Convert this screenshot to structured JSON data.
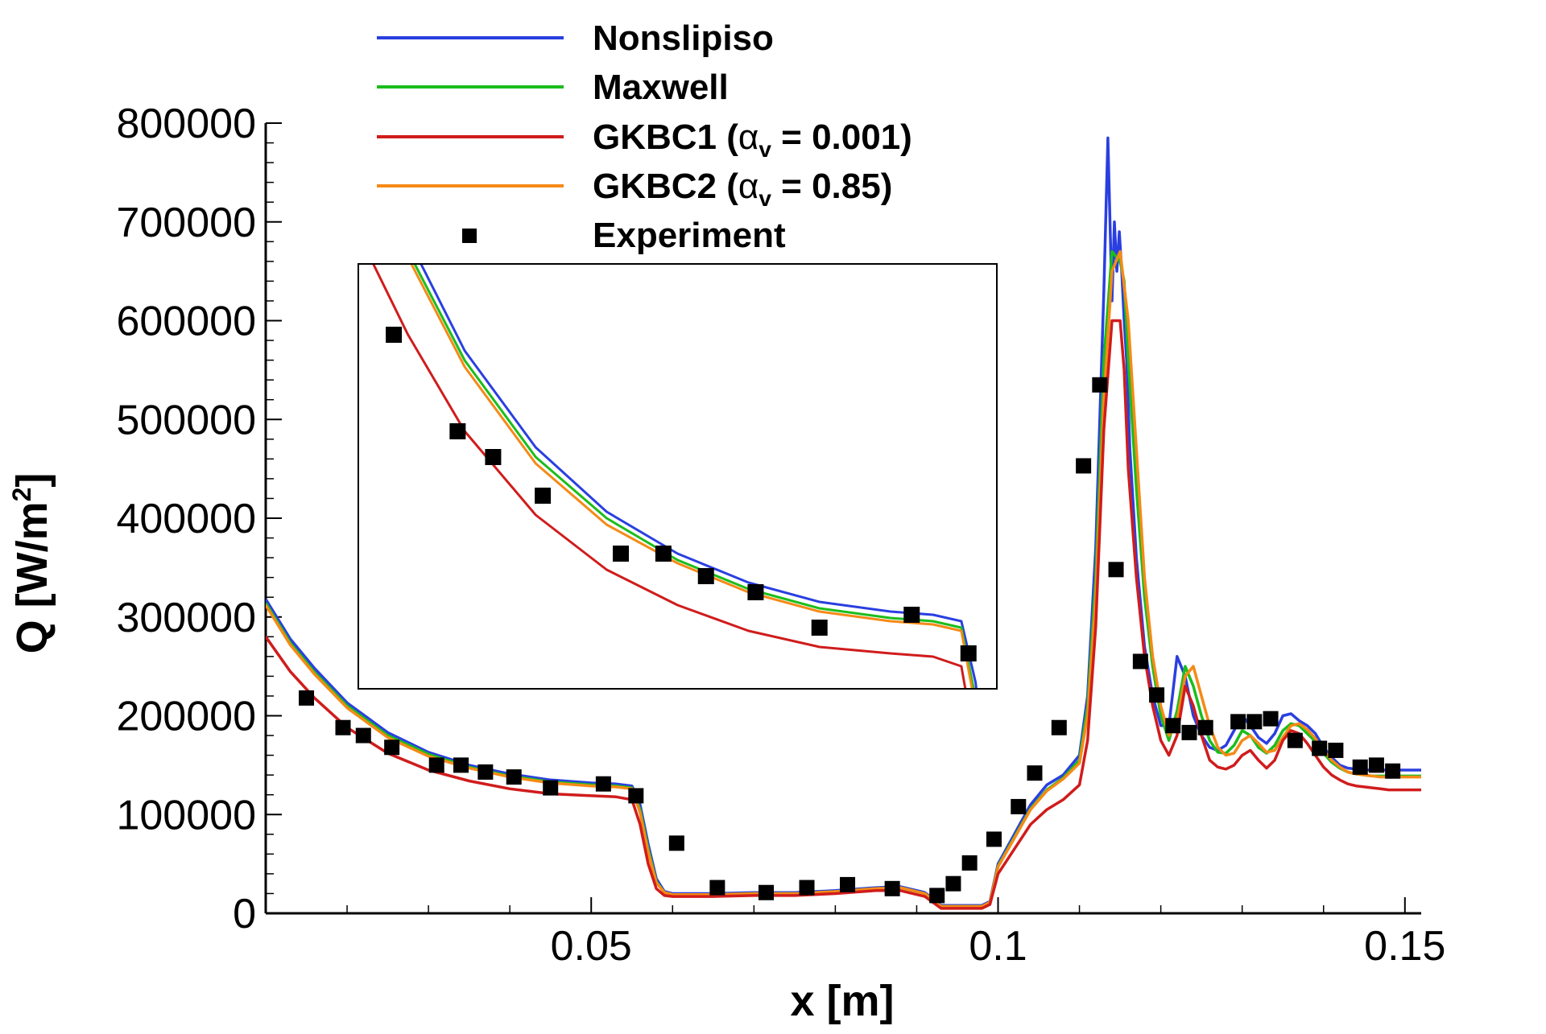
{
  "chart_data": {
    "type": "line",
    "xlabel": "x [m]",
    "ylabel_main": "Q [W/m",
    "ylabel_sup": "2",
    "ylabel_close": "]",
    "xlim": [
      0.01,
      0.152
    ],
    "ylim": [
      0,
      800000
    ],
    "x_ticks": [
      0.05,
      0.1,
      0.15
    ],
    "x_tick_labels": [
      "0.05",
      "0.1",
      "0.15"
    ],
    "y_ticks": [
      0,
      100000,
      200000,
      300000,
      400000,
      500000,
      600000,
      700000,
      800000
    ],
    "y_tick_labels": [
      "0",
      "100000",
      "200000",
      "300000",
      "400000",
      "500000",
      "600000",
      "700000",
      "800000"
    ],
    "legend": {
      "position": "top-center",
      "entries": [
        {
          "id": "nonslipiso",
          "label": "Nonslipiso",
          "kind": "line",
          "color": "#2a3fe0"
        },
        {
          "id": "maxwell",
          "label": "Maxwell",
          "kind": "line",
          "color": "#1cbd1c"
        },
        {
          "id": "gkbc1",
          "label_pre": "GKBC1 (",
          "label_greek": "α",
          "label_sub": "v",
          "label_post": " = 0.001)",
          "kind": "line",
          "color": "#d01c1c"
        },
        {
          "id": "gkbc2",
          "label_pre": "GKBC2 (",
          "label_greek": "α",
          "label_sub": "v",
          "label_post": " = 0.85)",
          "kind": "line",
          "color": "#f58a16"
        },
        {
          "id": "experiment",
          "label": "Experiment",
          "kind": "marker",
          "color": "#000000"
        }
      ]
    },
    "series": [
      {
        "name": "Nonslipiso",
        "color": "#2a3fe0",
        "x": [
          0.01,
          0.013,
          0.016,
          0.02,
          0.025,
          0.03,
          0.035,
          0.04,
          0.045,
          0.05,
          0.053,
          0.055,
          0.056,
          0.057,
          0.058,
          0.059,
          0.06,
          0.062,
          0.065,
          0.07,
          0.075,
          0.08,
          0.085,
          0.088,
          0.091,
          0.093,
          0.095,
          0.097,
          0.098,
          0.099,
          0.1,
          0.102,
          0.104,
          0.106,
          0.108,
          0.11,
          0.111,
          0.112,
          0.113,
          0.1135,
          0.114,
          0.1143,
          0.1146,
          0.1149,
          0.1152,
          0.1155,
          0.1158,
          0.1162,
          0.117,
          0.118,
          0.119,
          0.12,
          0.121,
          0.122,
          0.123,
          0.124,
          0.125,
          0.126,
          0.127,
          0.128,
          0.129,
          0.13,
          0.131,
          0.132,
          0.133,
          0.134,
          0.135,
          0.136,
          0.137,
          0.138,
          0.139,
          0.14,
          0.141,
          0.142,
          0.143,
          0.144,
          0.145,
          0.146,
          0.147,
          0.148,
          0.149,
          0.15,
          0.151,
          0.152
        ],
        "y": [
          318000,
          278000,
          248000,
          213000,
          183000,
          163000,
          150000,
          141000,
          135000,
          132000,
          131000,
          129000,
          110000,
          70000,
          35000,
          22000,
          20000,
          20000,
          20000,
          21000,
          21000,
          23000,
          26000,
          27000,
          21000,
          8000,
          8000,
          8000,
          8000,
          12000,
          50000,
          80000,
          110000,
          130000,
          140000,
          160000,
          220000,
          370000,
          630000,
          785000,
          620000,
          700000,
          650000,
          690000,
          650000,
          600000,
          560000,
          470000,
          360000,
          270000,
          220000,
          190000,
          190000,
          260000,
          240000,
          200000,
          180000,
          168000,
          165000,
          170000,
          185000,
          200000,
          190000,
          178000,
          172000,
          182000,
          200000,
          202000,
          195000,
          190000,
          182000,
          168000,
          158000,
          150000,
          147000,
          146000,
          145000,
          145000,
          145000,
          145000,
          145000,
          145000,
          145000,
          145000
        ]
      },
      {
        "name": "Maxwell",
        "color": "#1cbd1c",
        "x": [
          0.01,
          0.013,
          0.016,
          0.02,
          0.025,
          0.03,
          0.035,
          0.04,
          0.045,
          0.05,
          0.053,
          0.055,
          0.056,
          0.057,
          0.058,
          0.059,
          0.06,
          0.062,
          0.065,
          0.07,
          0.075,
          0.08,
          0.085,
          0.088,
          0.091,
          0.093,
          0.095,
          0.097,
          0.098,
          0.099,
          0.1,
          0.102,
          0.104,
          0.106,
          0.108,
          0.11,
          0.111,
          0.112,
          0.113,
          0.114,
          0.115,
          0.1155,
          0.116,
          0.117,
          0.118,
          0.119,
          0.12,
          0.121,
          0.122,
          0.123,
          0.124,
          0.125,
          0.126,
          0.127,
          0.128,
          0.129,
          0.13,
          0.131,
          0.132,
          0.133,
          0.134,
          0.135,
          0.136,
          0.137,
          0.138,
          0.139,
          0.14,
          0.141,
          0.142,
          0.143,
          0.144,
          0.145,
          0.146,
          0.147,
          0.148,
          0.149,
          0.15,
          0.151,
          0.152
        ],
        "y": [
          314000,
          274000,
          244000,
          210000,
          180000,
          161000,
          148000,
          139000,
          133000,
          130000,
          129000,
          127000,
          105000,
          65000,
          32000,
          21000,
          19000,
          19000,
          19000,
          20000,
          20000,
          22000,
          25000,
          26000,
          20000,
          7000,
          7000,
          7000,
          7000,
          11000,
          48000,
          77000,
          106000,
          125000,
          137000,
          155000,
          210000,
          340000,
          560000,
          670000,
          660000,
          640000,
          560000,
          430000,
          320000,
          250000,
          200000,
          175000,
          205000,
          250000,
          230000,
          200000,
          175000,
          163000,
          162000,
          170000,
          185000,
          180000,
          168000,
          162000,
          170000,
          185000,
          192000,
          190000,
          182000,
          174000,
          162000,
          153000,
          147000,
          143000,
          141000,
          140000,
          139000,
          139000,
          139000,
          139000,
          139000,
          139000,
          139000
        ]
      },
      {
        "name": "GKBC1 (αv = 0.001)",
        "color": "#d01c1c",
        "x": [
          0.01,
          0.013,
          0.016,
          0.02,
          0.025,
          0.03,
          0.035,
          0.04,
          0.045,
          0.05,
          0.053,
          0.055,
          0.056,
          0.057,
          0.058,
          0.059,
          0.06,
          0.062,
          0.065,
          0.07,
          0.075,
          0.08,
          0.085,
          0.088,
          0.091,
          0.093,
          0.095,
          0.097,
          0.098,
          0.099,
          0.1,
          0.102,
          0.104,
          0.106,
          0.108,
          0.11,
          0.111,
          0.112,
          0.113,
          0.114,
          0.115,
          0.1155,
          0.116,
          0.117,
          0.118,
          0.119,
          0.12,
          0.121,
          0.122,
          0.123,
          0.124,
          0.125,
          0.126,
          0.127,
          0.128,
          0.129,
          0.13,
          0.131,
          0.132,
          0.133,
          0.134,
          0.135,
          0.136,
          0.137,
          0.138,
          0.139,
          0.14,
          0.141,
          0.142,
          0.143,
          0.144,
          0.145,
          0.146,
          0.147,
          0.148,
          0.149,
          0.15,
          0.151,
          0.152
        ],
        "y": [
          280000,
          245000,
          218000,
          188000,
          162000,
          145000,
          134000,
          126000,
          121000,
          119000,
          118000,
          115000,
          90000,
          50000,
          25000,
          18000,
          17000,
          17000,
          17000,
          18000,
          18000,
          20000,
          23000,
          23000,
          17000,
          5000,
          5000,
          5000,
          5000,
          9000,
          40000,
          65000,
          90000,
          105000,
          115000,
          130000,
          175000,
          290000,
          490000,
          600000,
          600000,
          550000,
          450000,
          340000,
          260000,
          210000,
          175000,
          160000,
          180000,
          230000,
          210000,
          180000,
          155000,
          148000,
          146000,
          150000,
          160000,
          165000,
          155000,
          147000,
          155000,
          175000,
          185000,
          182000,
          172000,
          160000,
          148000,
          140000,
          135000,
          131000,
          129000,
          128000,
          127000,
          126000,
          125000,
          125000,
          125000,
          125000,
          125000
        ]
      },
      {
        "name": "GKBC2 (αv = 0.85)",
        "color": "#f58a16",
        "x": [
          0.01,
          0.013,
          0.016,
          0.02,
          0.025,
          0.03,
          0.035,
          0.04,
          0.045,
          0.05,
          0.053,
          0.055,
          0.056,
          0.057,
          0.058,
          0.059,
          0.06,
          0.062,
          0.065,
          0.07,
          0.075,
          0.08,
          0.085,
          0.088,
          0.091,
          0.093,
          0.095,
          0.097,
          0.098,
          0.099,
          0.1,
          0.102,
          0.104,
          0.106,
          0.108,
          0.11,
          0.111,
          0.112,
          0.113,
          0.114,
          0.115,
          0.116,
          0.117,
          0.118,
          0.119,
          0.12,
          0.121,
          0.122,
          0.123,
          0.124,
          0.125,
          0.126,
          0.127,
          0.128,
          0.129,
          0.13,
          0.131,
          0.132,
          0.133,
          0.134,
          0.135,
          0.136,
          0.137,
          0.138,
          0.139,
          0.14,
          0.141,
          0.142,
          0.143,
          0.144,
          0.145,
          0.146,
          0.147,
          0.148,
          0.149,
          0.15,
          0.151,
          0.152
        ],
        "y": [
          312000,
          272000,
          242000,
          208000,
          178000,
          159000,
          147000,
          138000,
          132000,
          129000,
          128000,
          126000,
          102000,
          62000,
          31000,
          21000,
          19000,
          19000,
          19000,
          20000,
          20000,
          22000,
          25000,
          26000,
          20000,
          7000,
          7000,
          7000,
          7000,
          11000,
          47000,
          76000,
          105000,
          124000,
          136000,
          152000,
          200000,
          320000,
          520000,
          650000,
          670000,
          600000,
          470000,
          340000,
          260000,
          210000,
          180000,
          195000,
          240000,
          250000,
          220000,
          190000,
          168000,
          160000,
          162000,
          175000,
          180000,
          172000,
          163000,
          165000,
          178000,
          190000,
          192000,
          186000,
          177000,
          165000,
          155000,
          148000,
          143000,
          141000,
          140000,
          139000,
          138000,
          138000,
          138000,
          138000,
          138000,
          138000
        ]
      }
    ],
    "experiment": {
      "name": "Experiment",
      "marker": "square",
      "color": "#000000",
      "x": [
        0.015,
        0.0195,
        0.022,
        0.0255,
        0.031,
        0.034,
        0.037,
        0.0405,
        0.045,
        0.0515,
        0.0555,
        0.0605,
        0.0655,
        0.0715,
        0.0765,
        0.0815,
        0.087,
        0.0925,
        0.0945,
        0.0965,
        0.0995,
        0.1025,
        0.1045,
        0.1075,
        0.1105,
        0.1125,
        0.1145,
        0.1175,
        0.1195,
        0.1215,
        0.1235,
        0.1255,
        0.1295,
        0.1315,
        0.1335,
        0.1365,
        0.1395,
        0.1415,
        0.1445,
        0.1465,
        0.1485
      ],
      "y": [
        218000,
        188000,
        180000,
        168000,
        150000,
        150000,
        143000,
        138000,
        127000,
        131000,
        119000,
        71000,
        26000,
        21000,
        26000,
        29000,
        25000,
        18000,
        30000,
        51000,
        75000,
        108000,
        142000,
        188000,
        453000,
        535000,
        348000,
        255000,
        221000,
        190000,
        183000,
        188000,
        194000,
        194000,
        197000,
        175000,
        167000,
        165000,
        148000,
        150000,
        144000
      ]
    },
    "inset": {
      "description_of_region": "zoom of x 0.0145 to 0.057",
      "xlim": [
        0.0125,
        0.0575
      ],
      "ylim": [
        108000,
        240000
      ]
    }
  }
}
